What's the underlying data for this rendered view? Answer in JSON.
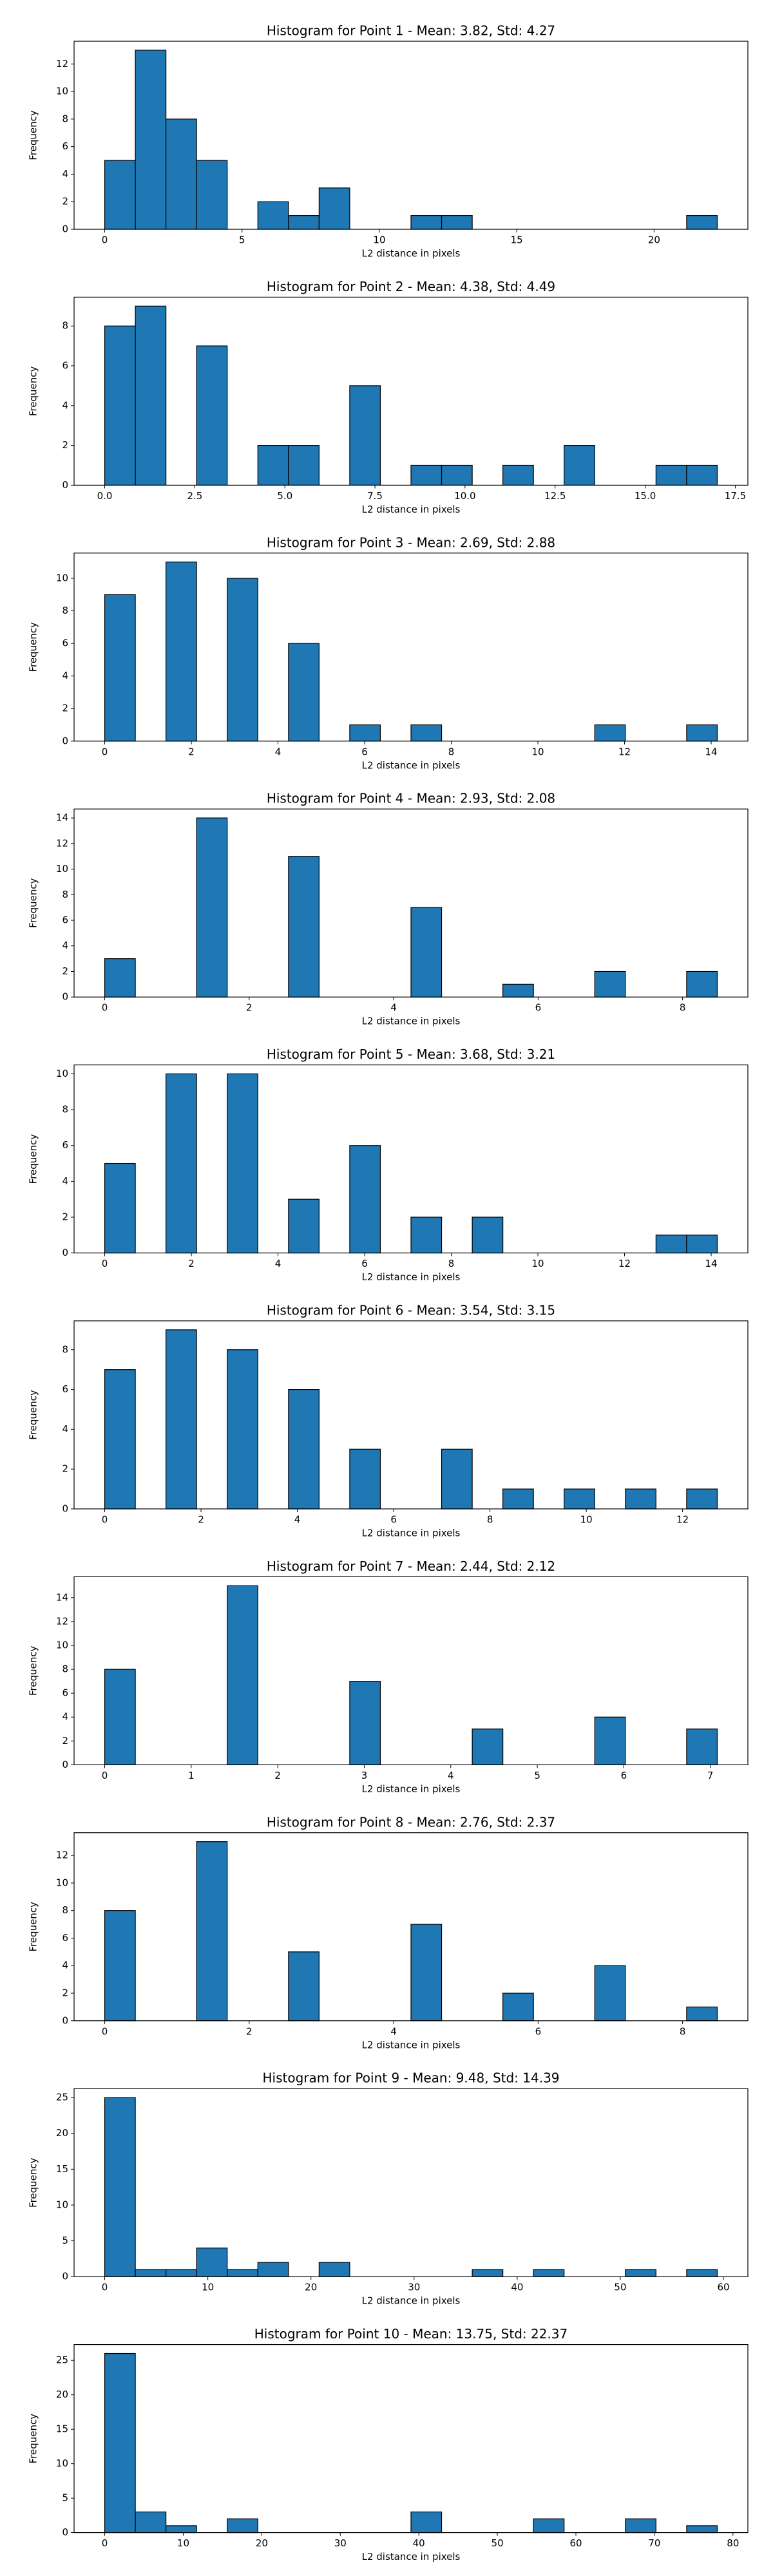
{
  "chart_data": [
    {
      "type": "histogram",
      "title": "Histogram for Point 1 - Mean: 3.82, Std: 4.27",
      "xlabel": "L2 distance in pixels",
      "ylabel": "Frequency",
      "color": "#1f77b4",
      "bins": [
        0,
        1.115,
        2.23,
        3.345,
        4.46,
        5.575,
        6.69,
        7.805,
        8.92,
        10.035,
        11.15,
        12.265,
        13.38,
        14.495,
        15.61,
        16.725,
        17.84,
        18.955,
        20.07,
        21.185,
        22.3
      ],
      "values": [
        5,
        13,
        8,
        5,
        0,
        2,
        1,
        3,
        0,
        0,
        1,
        1,
        0,
        0,
        0,
        0,
        0,
        0,
        0,
        1
      ],
      "xlim": [
        -1.115,
        23.415
      ],
      "xticks": [
        0,
        5,
        10,
        15,
        20
      ],
      "ylim": [
        0,
        13.65
      ],
      "yticks": [
        0,
        2,
        4,
        6,
        8,
        10,
        12
      ]
    },
    {
      "type": "histogram",
      "title": "Histogram for Point 2 - Mean: 4.38, Std: 4.49",
      "xlabel": "L2 distance in pixels",
      "ylabel": "Frequency",
      "color": "#1f77b4",
      "bins": [
        0,
        0.85,
        1.7,
        2.55,
        3.4,
        4.25,
        5.1,
        5.95,
        6.8,
        7.65,
        8.5,
        9.35,
        10.2,
        11.05,
        11.9,
        12.75,
        13.6,
        14.45,
        15.3,
        16.15,
        17
      ],
      "values": [
        8,
        9,
        0,
        7,
        0,
        2,
        2,
        0,
        5,
        0,
        1,
        1,
        0,
        1,
        0,
        2,
        0,
        0,
        1,
        1
      ],
      "xlim": [
        -0.85,
        17.85
      ],
      "xticks": [
        {
          "value": 0,
          "label": "0.0"
        },
        {
          "value": 2.5,
          "label": "2.5"
        },
        {
          "value": 5,
          "label": "5.0"
        },
        {
          "value": 7.5,
          "label": "7.5"
        },
        {
          "value": 10,
          "label": "10.0"
        },
        {
          "value": 12.5,
          "label": "12.5"
        },
        {
          "value": 15,
          "label": "15.0"
        },
        {
          "value": 17.5,
          "label": "17.5"
        }
      ],
      "ylim": [
        0,
        9.45
      ],
      "yticks": [
        0,
        2,
        4,
        6,
        8
      ]
    },
    {
      "type": "histogram",
      "title": "Histogram for Point 3 - Mean: 2.69, Std: 2.88",
      "xlabel": "L2 distance in pixels",
      "ylabel": "Frequency",
      "color": "#1f77b4",
      "bins": [
        0,
        0.707,
        1.414,
        2.121,
        2.828,
        3.535,
        4.242,
        4.949,
        5.656,
        6.363,
        7.07,
        7.777,
        8.484,
        9.191,
        9.898,
        10.605,
        11.312,
        12.019,
        12.726,
        13.433,
        14.14
      ],
      "values": [
        9,
        0,
        11,
        0,
        10,
        0,
        6,
        0,
        1,
        0,
        1,
        0,
        0,
        0,
        0,
        0,
        1,
        0,
        0,
        1
      ],
      "xlim": [
        -0.707,
        14.847
      ],
      "xticks": [
        0,
        2,
        4,
        6,
        8,
        10,
        12,
        14
      ],
      "ylim": [
        0,
        11.55
      ],
      "yticks": [
        0,
        2,
        4,
        6,
        8,
        10
      ]
    },
    {
      "type": "histogram",
      "title": "Histogram for Point 4 - Mean: 2.93, Std: 2.08",
      "xlabel": "L2 distance in pixels",
      "ylabel": "Frequency",
      "color": "#1f77b4",
      "bins": [
        0,
        0.424,
        0.848,
        1.272,
        1.696,
        2.12,
        2.544,
        2.968,
        3.392,
        3.816,
        4.24,
        4.664,
        5.088,
        5.512,
        5.936,
        6.36,
        6.784,
        7.208,
        7.632,
        8.056,
        8.48
      ],
      "values": [
        3,
        0,
        0,
        14,
        0,
        0,
        11,
        0,
        0,
        0,
        7,
        0,
        0,
        1,
        0,
        0,
        2,
        0,
        0,
        2
      ],
      "xlim": [
        -0.424,
        8.904
      ],
      "xticks": [
        0,
        2,
        4,
        6,
        8
      ],
      "ylim": [
        0,
        14.7
      ],
      "yticks": [
        0,
        2,
        4,
        6,
        8,
        10,
        12,
        14
      ]
    },
    {
      "type": "histogram",
      "title": "Histogram for Point 5 - Mean: 3.68, Std: 3.21",
      "xlabel": "L2 distance in pixels",
      "ylabel": "Frequency",
      "color": "#1f77b4",
      "bins": [
        0,
        0.707,
        1.414,
        2.121,
        2.828,
        3.535,
        4.242,
        4.949,
        5.656,
        6.363,
        7.07,
        7.777,
        8.484,
        9.191,
        9.898,
        10.605,
        11.312,
        12.019,
        12.726,
        13.433,
        14.14
      ],
      "values": [
        5,
        0,
        10,
        0,
        10,
        0,
        3,
        0,
        6,
        0,
        2,
        0,
        2,
        0,
        0,
        0,
        0,
        0,
        1,
        1
      ],
      "xlim": [
        -0.707,
        14.847
      ],
      "xticks": [
        0,
        2,
        4,
        6,
        8,
        10,
        12,
        14
      ],
      "ylim": [
        0,
        10.5
      ],
      "yticks": [
        0,
        2,
        4,
        6,
        8,
        10
      ]
    },
    {
      "type": "histogram",
      "title": "Histogram for Point 6 - Mean: 3.54, Std: 3.15",
      "xlabel": "L2 distance in pixels",
      "ylabel": "Frequency",
      "color": "#1f77b4",
      "bins": [
        0,
        0.636,
        1.272,
        1.908,
        2.544,
        3.18,
        3.816,
        4.452,
        5.088,
        5.724,
        6.36,
        6.996,
        7.632,
        8.268,
        8.904,
        9.54,
        10.176,
        10.812,
        11.448,
        12.084,
        12.72
      ],
      "values": [
        7,
        0,
        9,
        0,
        8,
        0,
        6,
        0,
        3,
        0,
        0,
        3,
        0,
        1,
        0,
        1,
        0,
        1,
        0,
        1
      ],
      "xlim": [
        -0.636,
        13.356
      ],
      "xticks": [
        0,
        2,
        4,
        6,
        8,
        10,
        12
      ],
      "ylim": [
        0,
        9.45
      ],
      "yticks": [
        0,
        2,
        4,
        6,
        8
      ]
    },
    {
      "type": "histogram",
      "title": "Histogram for Point 7 - Mean: 2.44, Std: 2.12",
      "xlabel": "L2 distance in pixels",
      "ylabel": "Frequency",
      "color": "#1f77b4",
      "bins": [
        0,
        0.354,
        0.708,
        1.062,
        1.416,
        1.77,
        2.124,
        2.478,
        2.832,
        3.186,
        3.54,
        3.894,
        4.248,
        4.602,
        4.956,
        5.31,
        5.664,
        6.018,
        6.372,
        6.726,
        7.08
      ],
      "values": [
        8,
        0,
        0,
        0,
        15,
        0,
        0,
        0,
        7,
        0,
        0,
        0,
        3,
        0,
        0,
        0,
        4,
        0,
        0,
        3
      ],
      "xlim": [
        -0.354,
        7.434
      ],
      "xticks": [
        0,
        1,
        2,
        3,
        4,
        5,
        6,
        7
      ],
      "ylim": [
        0,
        15.75
      ],
      "yticks": [
        0,
        2,
        4,
        6,
        8,
        10,
        12,
        14
      ]
    },
    {
      "type": "histogram",
      "title": "Histogram for Point 8 - Mean: 2.76, Std: 2.37",
      "xlabel": "L2 distance in pixels",
      "ylabel": "Frequency",
      "color": "#1f77b4",
      "bins": [
        0,
        0.424,
        0.848,
        1.272,
        1.696,
        2.12,
        2.544,
        2.968,
        3.392,
        3.816,
        4.24,
        4.664,
        5.088,
        5.512,
        5.936,
        6.36,
        6.784,
        7.208,
        7.632,
        8.056,
        8.48
      ],
      "values": [
        8,
        0,
        0,
        13,
        0,
        0,
        5,
        0,
        0,
        0,
        7,
        0,
        0,
        2,
        0,
        0,
        4,
        0,
        0,
        1
      ],
      "xlim": [
        -0.424,
        8.904
      ],
      "xticks": [
        0,
        2,
        4,
        6,
        8
      ],
      "ylim": [
        0,
        13.65
      ],
      "yticks": [
        0,
        2,
        4,
        6,
        8,
        10,
        12
      ]
    },
    {
      "type": "histogram",
      "title": "Histogram for Point 9 - Mean: 9.48, Std: 14.39",
      "xlabel": "L2 distance in pixels",
      "ylabel": "Frequency",
      "color": "#1f77b4",
      "bins": [
        0,
        2.97,
        5.94,
        8.91,
        11.88,
        14.85,
        17.82,
        20.79,
        23.76,
        26.73,
        29.7,
        32.67,
        35.64,
        38.61,
        41.58,
        44.55,
        47.52,
        50.49,
        53.46,
        56.43,
        59.4
      ],
      "values": [
        25,
        1,
        1,
        4,
        1,
        2,
        0,
        2,
        0,
        0,
        0,
        0,
        1,
        0,
        1,
        0,
        0,
        1,
        0,
        1
      ],
      "xlim": [
        -2.97,
        62.37
      ],
      "xticks": [
        0,
        10,
        20,
        30,
        40,
        50,
        60
      ],
      "ylim": [
        0,
        26.25
      ],
      "yticks": [
        0,
        5,
        10,
        15,
        20,
        25
      ]
    },
    {
      "type": "histogram",
      "title": "Histogram for Point 10 - Mean: 13.75, Std: 22.37",
      "xlabel": "L2 distance in pixels",
      "ylabel": "Frequency",
      "color": "#1f77b4",
      "bins": [
        0,
        3.9,
        7.8,
        11.7,
        15.6,
        19.5,
        23.4,
        27.3,
        31.2,
        35.1,
        39,
        42.9,
        46.8,
        50.7,
        54.6,
        58.5,
        62.4,
        66.3,
        70.2,
        74.1,
        78
      ],
      "values": [
        26,
        3,
        1,
        0,
        2,
        0,
        0,
        0,
        0,
        0,
        3,
        0,
        0,
        0,
        2,
        0,
        0,
        2,
        0,
        1
      ],
      "xlim": [
        -3.9,
        81.9
      ],
      "xticks": [
        0,
        10,
        20,
        30,
        40,
        50,
        60,
        70,
        80
      ],
      "ylim": [
        0,
        27.3
      ],
      "yticks": [
        0,
        5,
        10,
        15,
        20,
        25
      ]
    }
  ]
}
